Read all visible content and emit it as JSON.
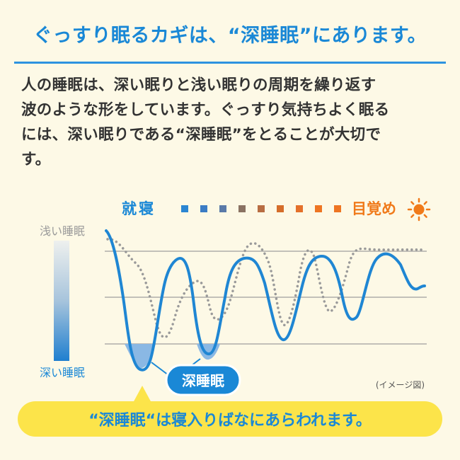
{
  "headline": "ぐっすり眠るカギは、“深睡眠”にあります。",
  "body_lines": [
    "人の睡眠は、深い眠りと浅い眠りの周期を繰り返す",
    "波のような形をしています。ぐっすり気持ちよく眠る",
    "には、深い眠りである“深睡眠”をとることが大切で",
    "す。"
  ],
  "diagram": {
    "bedtime_label": "就寝",
    "wake_label": "目覚め",
    "light_sleep_label": "浅い睡眠",
    "deep_sleep_label": "深い睡眠",
    "deep_sleep_badge": "深睡眠",
    "note": "(イメージ図)",
    "moon_icon": "crescent-moon-icon",
    "sun_icon": "sun-icon",
    "colors": {
      "accent": "#1a88d6",
      "solid_wave": "#1f86d3",
      "dotted_wave": "#9a9a9a",
      "deep_fill": "#8ab8e4",
      "sun": "#f07a1a",
      "timeline_squares": [
        "#2b86d2",
        "#3b7cc4",
        "#5a7aa8",
        "#8a7262",
        "#b86d42",
        "#d56d2a",
        "#e4702a",
        "#ee7522"
      ]
    }
  },
  "callout": "“深睡眠“は寝入りばなにあらわれます。"
}
